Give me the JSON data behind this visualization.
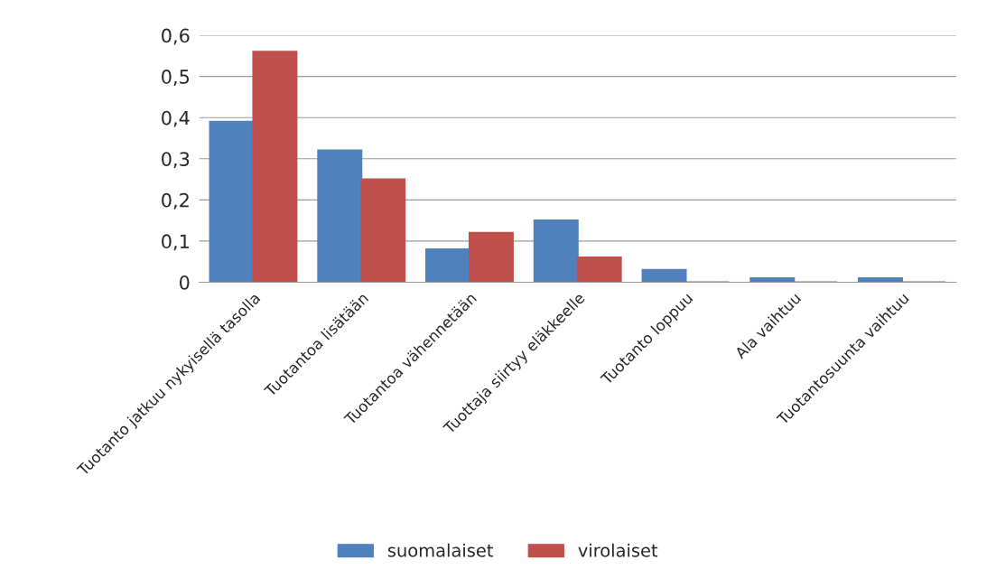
{
  "chart_data": {
    "type": "bar",
    "categories": [
      "Tuotanto jatkuu nykyisellä tasolla",
      "Tuotantoa lisätään",
      "Tuotantoa vähennetään",
      "Tuottaja siirtyy eläkkeelle",
      "Tuotanto loppuu",
      "Ala vaihtuu",
      "Tuotantosuunta vaihtuu"
    ],
    "series": [
      {
        "name": "suomalaiset",
        "color": "#4f81bd",
        "values": [
          0.39,
          0.32,
          0.08,
          0.15,
          0.03,
          0.01,
          0.01
        ]
      },
      {
        "name": "virolaiset",
        "color": "#c0504d",
        "values": [
          0.56,
          0.25,
          0.12,
          0.06,
          0,
          0,
          0
        ]
      }
    ],
    "ylim": [
      0,
      0.6
    ],
    "yticks": [
      {
        "value": 0,
        "label": "0"
      },
      {
        "value": 0.1,
        "label": "0,1"
      },
      {
        "value": 0.2,
        "label": "0,2"
      },
      {
        "value": 0.3,
        "label": "0,3"
      },
      {
        "value": 0.4,
        "label": "0,4"
      },
      {
        "value": 0.5,
        "label": "0,5"
      },
      {
        "value": 0.6,
        "label": "0,6"
      }
    ],
    "grid": "y",
    "legend": "bottom"
  }
}
